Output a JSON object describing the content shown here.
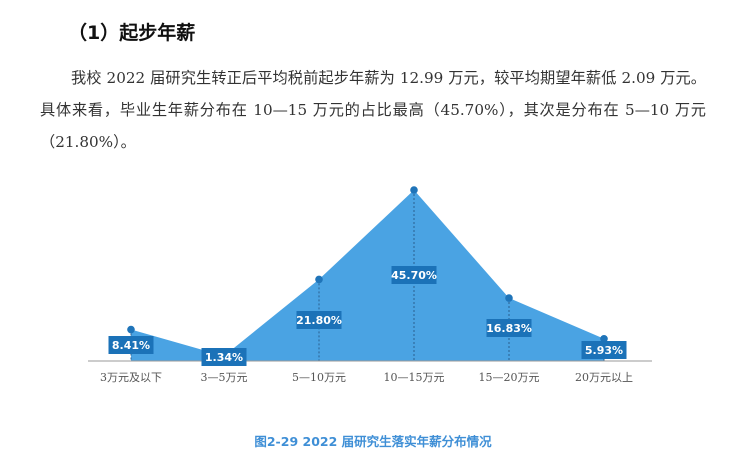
{
  "section": {
    "heading": "（1）起步年薪"
  },
  "paragraph": "我校 2022 届研究生转正后平均税前起步年薪为 12.99 万元，较平均期望年薪低 2.09 万元。具体来看，毕业生年薪分布在 10—15 万元的占比最高（45.70%），其次是分布在 5—10 万元（21.80%）。",
  "chart_data": {
    "type": "area",
    "title": "图2-29  2022 届研究生落实年薪分布情况",
    "categories": [
      "3万元及以下",
      "3—5万元",
      "5—10万元",
      "10—15万元",
      "15—20万元",
      "20万元以上"
    ],
    "values": [
      8.41,
      1.34,
      21.8,
      45.7,
      16.83,
      5.93
    ],
    "labels": [
      "8.41%",
      "1.34%",
      "21.80%",
      "45.70%",
      "16.83%",
      "5.93%"
    ],
    "ylim": [
      0,
      50
    ],
    "xlabel": "",
    "ylabel": "",
    "grid": false,
    "legend": "none",
    "colors": {
      "fill": "#4aa3e3",
      "marker": "#1f74b9",
      "label_bg": "#1b72b8",
      "label_text": "#ffffff",
      "axis": "#999999",
      "dash": "#2a5f8f"
    }
  }
}
